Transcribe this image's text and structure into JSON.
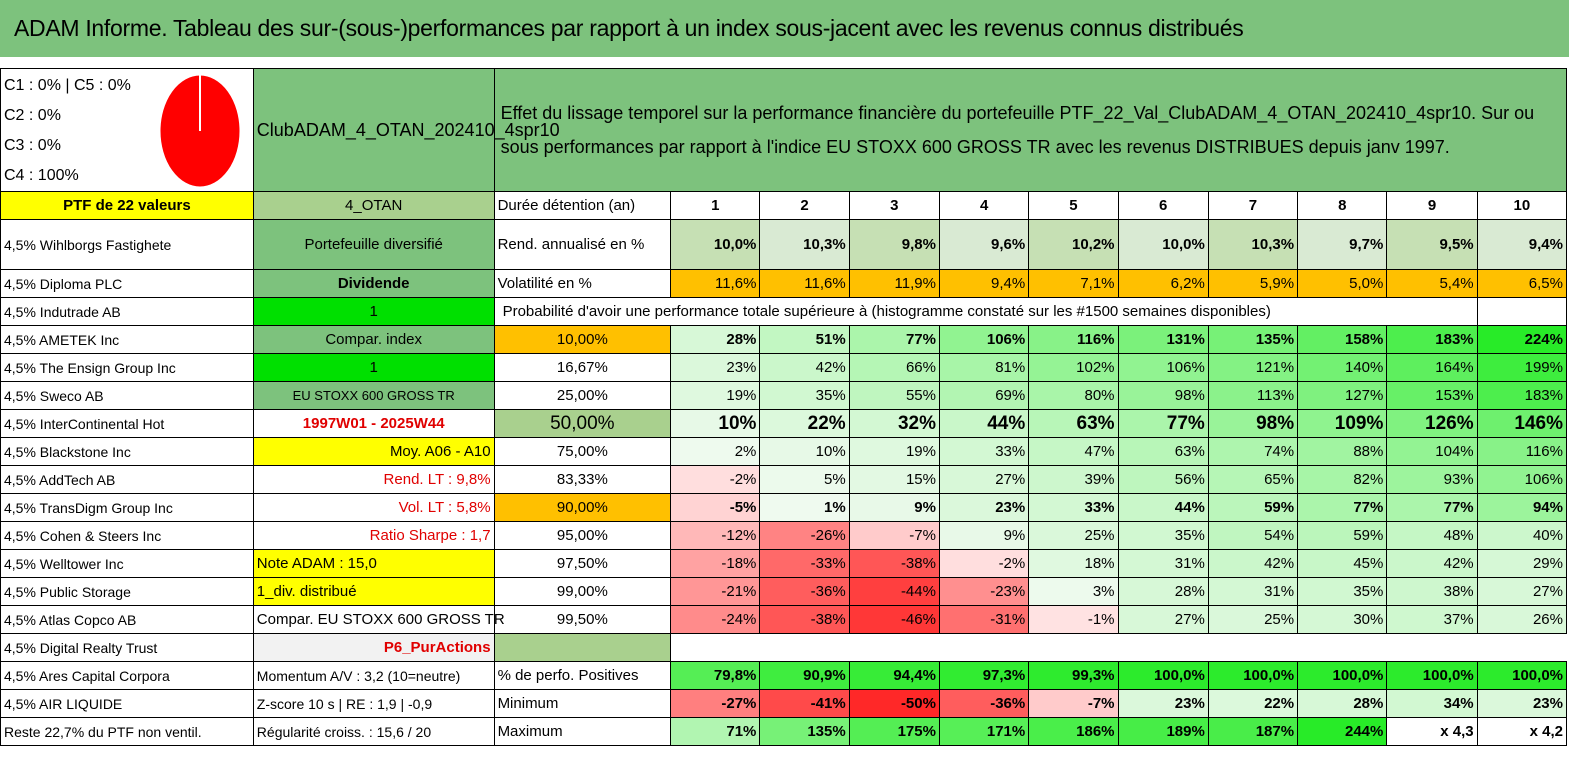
{
  "title": "ADAM Informe. Tableau des sur-(sous-)performances par rapport à un index sous-jacent avec les revenus connus distribués",
  "stats": [
    "C1 : 0% | C5 : 0%",
    "C2 : 0%",
    "C3 : 0%",
    "C4 : 100%"
  ],
  "pie_icon": "pie-chart-red",
  "fund_name": "ClubADAM_4_OTAN_202410_4spr10",
  "description": "Effet du lissage temporel sur la performance financière du portefeuille PTF_22_Val_ClubADAM_4_OTAN_202410_4spr10. Sur ou sous performances par rapport à l'indice EU STOXX 600 GROSS TR avec les revenus DISTRIBUES depuis janv 1997.",
  "ptf_label": "PTF de 22 valeurs",
  "otan": "4_OTAN",
  "duree_label": "Durée détention (an)",
  "years": [
    "1",
    "2",
    "3",
    "4",
    "5",
    "6",
    "7",
    "8",
    "9",
    "10"
  ],
  "rend_label": "Rend. annualisé en %",
  "rend": [
    "10,0%",
    "10,3%",
    "9,8%",
    "9,6%",
    "10,2%",
    "10,0%",
    "10,3%",
    "9,7%",
    "9,5%",
    "9,4%"
  ],
  "vol_label": "Volatilité en %",
  "vol": [
    "11,6%",
    "11,6%",
    "11,9%",
    "9,4%",
    "7,1%",
    "6,2%",
    "5,9%",
    "5,0%",
    "5,4%",
    "6,5%"
  ],
  "prob_text": "Probabilité d'avoir une performance totale supérieure à (histogramme constaté sur les #1500 semaines disponibles)",
  "holdings": [
    "4,5% Wihlborgs Fastighete",
    "4,5% Diploma PLC",
    "4,5% Indutrade AB",
    "4,5% AMETEK Inc",
    "4,5% The Ensign Group Inc",
    "4,5% Sweco AB",
    "4,5% InterContinental Hot",
    "4,5% Blackstone Inc",
    "4,5% AddTech AB",
    "4,5% TransDigm Group Inc",
    "4,5% Cohen & Steers Inc",
    "4,5% Welltower Inc",
    "4,5% Public Storage",
    "4,5% Atlas Copco AB",
    "4,5% Digital Realty Trust",
    "4,5% Ares Capital Corpora",
    "4,5% AIR LIQUIDE",
    "Reste 22,7% du PTF non ventil."
  ],
  "col2": [
    "Portefeuille diversifié",
    "Dividende",
    "1",
    "Compar. index",
    "1",
    "EU STOXX 600 GROSS TR",
    "1997W01 - 2025W44",
    "Moy. A06 - A10",
    "Rend. LT : 9,8%",
    "Vol. LT : 5,8%",
    "Ratio Sharpe : 1,7",
    "Note ADAM : 15,0",
    "1_div. distribué",
    "Compar. EU STOXX 600 GROSS TR",
    "P6_PurActions",
    "Momentum A/V : 3,2 (10=neutre)",
    "Z-score 10 s | RE : 1,9 | -0,9",
    "Régularité croiss. : 15,6 / 20"
  ],
  "percentiles": [
    "10,00%",
    "16,67%",
    "25,00%",
    "50,00%",
    "75,00%",
    "83,33%",
    "90,00%",
    "95,00%",
    "97,50%",
    "99,00%",
    "99,50%"
  ],
  "prob_rows": [
    [
      "28%",
      "51%",
      "77%",
      "106%",
      "116%",
      "131%",
      "135%",
      "158%",
      "183%",
      "224%"
    ],
    [
      "23%",
      "42%",
      "66%",
      "81%",
      "102%",
      "106%",
      "121%",
      "140%",
      "164%",
      "199%"
    ],
    [
      "19%",
      "35%",
      "55%",
      "69%",
      "80%",
      "98%",
      "113%",
      "127%",
      "153%",
      "183%"
    ],
    [
      "10%",
      "22%",
      "32%",
      "44%",
      "63%",
      "77%",
      "98%",
      "109%",
      "126%",
      "146%"
    ],
    [
      "2%",
      "10%",
      "19%",
      "33%",
      "47%",
      "63%",
      "74%",
      "88%",
      "104%",
      "116%"
    ],
    [
      "-2%",
      "5%",
      "15%",
      "27%",
      "39%",
      "56%",
      "65%",
      "82%",
      "93%",
      "106%"
    ],
    [
      "-5%",
      "1%",
      "9%",
      "23%",
      "33%",
      "44%",
      "59%",
      "77%",
      "77%",
      "94%"
    ],
    [
      "-12%",
      "-26%",
      "-7%",
      "9%",
      "25%",
      "35%",
      "54%",
      "59%",
      "48%",
      "40%"
    ],
    [
      "-18%",
      "-33%",
      "-38%",
      "-2%",
      "18%",
      "31%",
      "42%",
      "45%",
      "42%",
      "29%"
    ],
    [
      "-21%",
      "-36%",
      "-44%",
      "-23%",
      "3%",
      "28%",
      "31%",
      "35%",
      "38%",
      "27%"
    ],
    [
      "-24%",
      "-38%",
      "-46%",
      "-31%",
      "-1%",
      "27%",
      "25%",
      "30%",
      "37%",
      "26%"
    ]
  ],
  "pos_label": "% de perfo. Positives",
  "pos": [
    "79,8%",
    "90,9%",
    "94,4%",
    "97,3%",
    "99,3%",
    "100,0%",
    "100,0%",
    "100,0%",
    "100,0%",
    "100,0%"
  ],
  "min_label": "Minimum",
  "min": [
    "-27%",
    "-41%",
    "-50%",
    "-36%",
    "-7%",
    "23%",
    "22%",
    "28%",
    "34%",
    "23%"
  ],
  "max_label": "Maximum",
  "max": [
    "71%",
    "135%",
    "175%",
    "171%",
    "186%",
    "189%",
    "187%",
    "244%",
    "x 4,3",
    "x 4,2"
  ],
  "colors": {
    "title_green": "#7dc27d",
    "strong_red": "#f03030",
    "pale_red": "#fde0e0",
    "bright_green": "#00e000",
    "orange": "#ffc000",
    "yellow": "#ffff00"
  }
}
